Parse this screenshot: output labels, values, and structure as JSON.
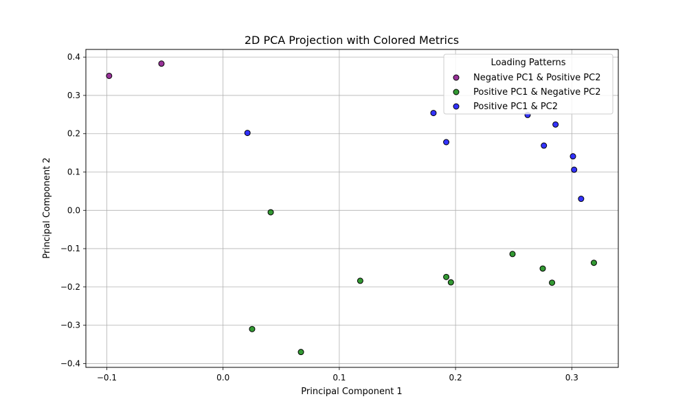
{
  "chart_data": {
    "type": "scatter",
    "title": "2D PCA Projection with Colored Metrics",
    "xlabel": "Principal Component 1",
    "ylabel": "Principal Component 2",
    "xlim": [
      -0.118,
      0.34
    ],
    "ylim": [
      -0.41,
      0.42
    ],
    "xticks": [
      -0.1,
      0.0,
      0.1,
      0.2,
      0.3
    ],
    "xtick_labels": [
      "−0.1",
      "0.0",
      "0.1",
      "0.2",
      "0.3"
    ],
    "yticks": [
      -0.4,
      -0.3,
      -0.2,
      -0.1,
      0.0,
      0.1,
      0.2,
      0.3,
      0.4
    ],
    "ytick_labels": [
      "−0.4",
      "−0.3",
      "−0.2",
      "−0.1",
      "0.0",
      "0.1",
      "0.2",
      "0.3",
      "0.4"
    ],
    "grid": true,
    "legend": {
      "title": "Loading Patterns",
      "placement": "top-right"
    },
    "series": [
      {
        "name": "Negative PC1 & Positive PC2",
        "color": "#800080",
        "points": [
          [
            -0.098,
            0.351
          ],
          [
            -0.053,
            0.383
          ]
        ]
      },
      {
        "name": "Positive PC1 & Negative PC2",
        "color": "#008000",
        "points": [
          [
            0.041,
            -0.005
          ],
          [
            0.025,
            -0.31
          ],
          [
            0.067,
            -0.37
          ],
          [
            0.118,
            -0.184
          ],
          [
            0.192,
            -0.174
          ],
          [
            0.196,
            -0.188
          ],
          [
            0.249,
            -0.114
          ],
          [
            0.275,
            -0.152
          ],
          [
            0.283,
            -0.189
          ],
          [
            0.319,
            -0.137
          ]
        ]
      },
      {
        "name": "Positive PC1 & PC2",
        "color": "#0000ff",
        "points": [
          [
            0.021,
            0.202
          ],
          [
            0.181,
            0.254
          ],
          [
            0.192,
            0.178
          ],
          [
            0.262,
            0.249
          ],
          [
            0.276,
            0.169
          ],
          [
            0.286,
            0.224
          ],
          [
            0.301,
            0.141
          ],
          [
            0.302,
            0.106
          ],
          [
            0.308,
            0.03
          ]
        ]
      }
    ]
  }
}
